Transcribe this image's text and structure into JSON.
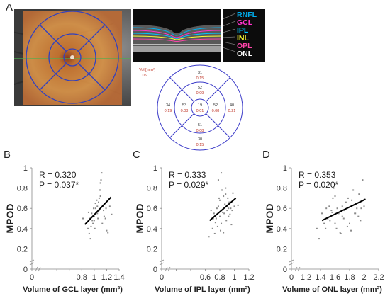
{
  "panels": {
    "A": "A",
    "B": "B",
    "C": "C",
    "D": "D"
  },
  "layers": [
    {
      "label": "RNFL",
      "color": "#00b0f0"
    },
    {
      "label": "GCL",
      "color": "#ff33cc"
    },
    {
      "label": "IPL",
      "color": "#00c8ff"
    },
    {
      "label": "INL",
      "color": "#ffff33"
    },
    {
      "label": "OPL",
      "color": "#ff44aa"
    },
    {
      "label": "ONL",
      "color": "#ffffff"
    }
  ],
  "etdrs": {
    "unit_label": "Vol.[mm³]",
    "scale_value": "1.05",
    "sectors": [
      {
        "id": "outer-top",
        "thickness": "31",
        "volume": "0.15"
      },
      {
        "id": "inner-top",
        "thickness": "52",
        "volume": "0.09"
      },
      {
        "id": "outer-left",
        "thickness": "34",
        "volume": "0.19"
      },
      {
        "id": "inner-left",
        "thickness": "53",
        "volume": "0.08"
      },
      {
        "id": "center",
        "thickness": "19",
        "volume": "0.01"
      },
      {
        "id": "inner-right",
        "thickness": "52",
        "volume": "0.08"
      },
      {
        "id": "outer-right",
        "thickness": "40",
        "volume": "0.21"
      },
      {
        "id": "inner-bottom",
        "thickness": "51",
        "volume": "0.08"
      },
      {
        "id": "outer-bottom",
        "thickness": "30",
        "volume": "0.15"
      }
    ]
  },
  "chart_data": [
    {
      "panel": "B",
      "type": "scatter",
      "xlabel": "Volume of GCL layer (mm³)",
      "ylabel": "MPOD",
      "stats": [
        "R = 0.320",
        "P = 0.037*"
      ],
      "xlim": [
        0,
        1.4
      ],
      "ylim": [
        0,
        1
      ],
      "xticks": [
        0,
        0.4,
        0.6,
        0.8,
        1,
        1.2,
        1.4
      ],
      "xtick_labels": [
        "0",
        "",
        "",
        "0.8",
        "1",
        "1.2",
        "1.4"
      ],
      "yticks": [
        0,
        0.2,
        0.4,
        0.6,
        0.8,
        1
      ],
      "ytick_labels": [
        "0",
        "0.2",
        "0.4",
        "0.6",
        "0.8",
        "1"
      ],
      "trend": [
        [
          0.85,
          0.44
        ],
        [
          1.27,
          0.71
        ]
      ],
      "x": [
        0.82,
        0.9,
        0.94,
        0.98,
        1.0,
        1.02,
        0.92,
        0.96,
        1.05,
        1.08,
        1.1,
        1.12,
        1.0,
        1.03,
        0.95,
        1.07,
        1.15,
        1.18,
        1.2,
        1.22,
        1.25,
        1.1,
        1.05,
        0.99,
        0.93,
        1.13,
        1.16,
        1.08,
        1.02,
        0.97,
        1.1,
        1.14,
        1.06,
        1.01,
        0.91,
        1.19,
        1.28,
        1.04,
        1.09,
        1.11
      ],
      "y": [
        0.5,
        0.4,
        0.3,
        0.45,
        0.52,
        0.6,
        0.35,
        0.55,
        0.62,
        0.7,
        0.78,
        0.95,
        0.48,
        0.56,
        0.42,
        0.66,
        0.58,
        0.5,
        0.38,
        0.36,
        0.62,
        0.72,
        0.55,
        0.6,
        0.5,
        0.45,
        0.52,
        0.58,
        0.65,
        0.48,
        0.85,
        0.62,
        0.5,
        0.4,
        0.56,
        0.6,
        0.54,
        0.68,
        0.78,
        0.88
      ]
    },
    {
      "panel": "C",
      "type": "scatter",
      "xlabel": "Volume of IPL layer (mm³)",
      "ylabel": "MPOD",
      "stats": [
        "R = 0.333",
        "P = 0.029*"
      ],
      "xlim": [
        0,
        1.2
      ],
      "ylim": [
        0,
        1
      ],
      "xticks": [
        0,
        0.2,
        0.4,
        0.6,
        0.8,
        1,
        1.2
      ],
      "xtick_labels": [
        "0",
        "",
        "",
        "0.6",
        "0.8",
        "1",
        "1.2"
      ],
      "yticks": [
        0,
        0.2,
        0.4,
        0.6,
        0.8,
        1
      ],
      "ytick_labels": [
        "0",
        "0.2",
        "0.4",
        "0.6",
        "0.8",
        "1"
      ],
      "trend": [
        [
          0.66,
          0.48
        ],
        [
          1.02,
          0.7
        ]
      ],
      "x": [
        0.65,
        0.7,
        0.72,
        0.75,
        0.78,
        0.8,
        0.82,
        0.85,
        0.88,
        0.9,
        0.92,
        0.95,
        0.98,
        1.0,
        0.74,
        0.76,
        0.79,
        0.83,
        0.86,
        0.89,
        0.93,
        0.97,
        0.71,
        0.77,
        0.81,
        0.84,
        0.87,
        0.91,
        0.94,
        0.68,
        0.8,
        0.85,
        0.9,
        0.78,
        0.82,
        0.96,
        1.05,
        0.73,
        0.88,
        0.92
      ],
      "y": [
        0.32,
        0.4,
        0.55,
        0.5,
        0.62,
        0.68,
        0.45,
        0.72,
        0.8,
        0.58,
        0.52,
        0.6,
        0.75,
        0.62,
        0.46,
        0.6,
        0.7,
        0.78,
        0.55,
        0.48,
        0.66,
        0.58,
        0.5,
        0.42,
        0.38,
        0.56,
        0.64,
        0.7,
        0.54,
        0.58,
        0.52,
        0.36,
        0.62,
        0.88,
        0.95,
        0.44,
        0.63,
        0.35,
        0.74,
        0.6
      ]
    },
    {
      "panel": "D",
      "type": "scatter",
      "xlabel": "Volume of ONL layer (mm³)",
      "ylabel": "MPOD",
      "stats": [
        "R = 0.353",
        "P = 0.020*"
      ],
      "xlim": [
        1,
        2.2
      ],
      "ylim": [
        0,
        1
      ],
      "xticks": [
        1,
        1.2,
        1.4,
        1.6,
        1.8,
        2,
        2.2
      ],
      "xtick_labels": [
        "0",
        "1.2",
        "1.4",
        "1.6",
        "1.8",
        "2",
        "2.2"
      ],
      "yticks": [
        0,
        0.2,
        0.4,
        0.6,
        0.8,
        1
      ],
      "ytick_labels": [
        "0",
        "0.2",
        "0.4",
        "0.6",
        "0.8",
        "1"
      ],
      "trend": [
        [
          1.42,
          0.48
        ],
        [
          2.02,
          0.69
        ]
      ],
      "x": [
        1.38,
        1.42,
        1.45,
        1.48,
        1.5,
        1.52,
        1.55,
        1.58,
        1.6,
        1.62,
        1.65,
        1.68,
        1.7,
        1.72,
        1.75,
        1.78,
        1.8,
        1.82,
        1.85,
        1.88,
        1.9,
        1.92,
        1.95,
        1.98,
        2.0,
        1.47,
        1.53,
        1.57,
        1.63,
        1.67,
        1.73,
        1.77,
        1.83,
        1.87,
        1.93,
        1.6,
        1.7,
        1.35,
        1.96,
        1.56
      ],
      "y": [
        0.3,
        0.55,
        0.45,
        0.6,
        0.5,
        0.62,
        0.58,
        0.8,
        0.72,
        0.4,
        0.55,
        0.35,
        0.62,
        0.5,
        0.66,
        0.7,
        0.45,
        0.38,
        0.78,
        0.55,
        0.6,
        0.52,
        0.48,
        0.88,
        0.62,
        0.4,
        0.48,
        0.7,
        0.6,
        0.36,
        0.58,
        0.42,
        0.68,
        0.55,
        0.74,
        0.45,
        0.52,
        0.4,
        0.6,
        0.56
      ]
    }
  ]
}
